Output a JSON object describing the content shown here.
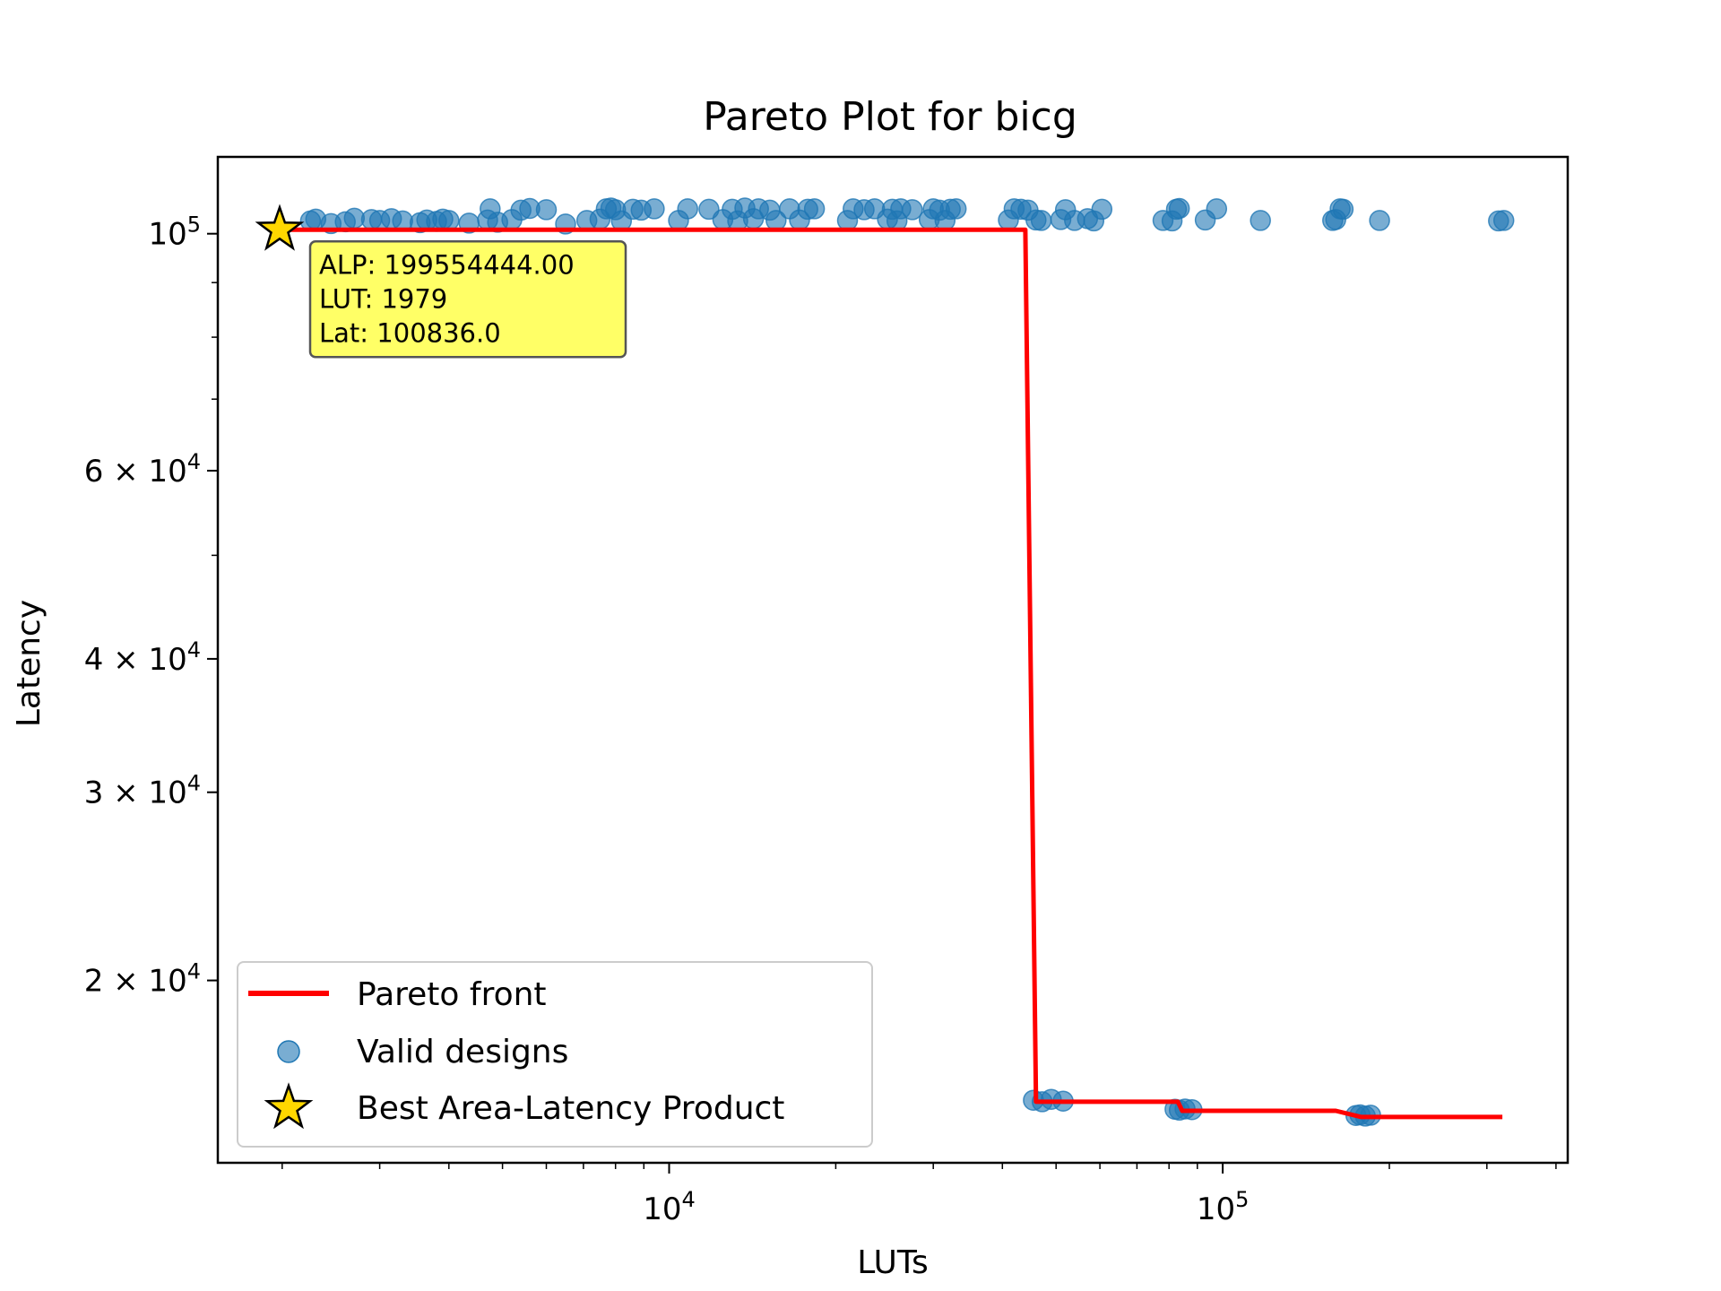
{
  "chart_data": {
    "type": "scatter",
    "title": "Pareto Plot for bicg",
    "xlabel": "LUTs",
    "ylabel": "Latency",
    "xscale": "log",
    "yscale": "log",
    "xlim": [
      1530,
      420000
    ],
    "ylim": [
      13500,
      118000
    ],
    "grid": false,
    "legend_position": "lower-left",
    "x_ticks": [
      {
        "value": 10000,
        "base": "10",
        "exp": "4"
      },
      {
        "value": 100000,
        "base": "10",
        "exp": "5"
      }
    ],
    "y_ticks": [
      {
        "value": 100000,
        "base": "10",
        "exp": "5"
      },
      {
        "value": 60000,
        "base": "6 × 10",
        "exp": "4"
      },
      {
        "value": 40000,
        "base": "4 × 10",
        "exp": "4"
      },
      {
        "value": 30000,
        "base": "3 × 10",
        "exp": "4"
      },
      {
        "value": 20000,
        "base": "2 × 10",
        "exp": "4"
      }
    ],
    "series": [
      {
        "name": "Pareto front",
        "kind": "line",
        "color": "#ff0000",
        "x": [
          1979,
          44000,
          46000,
          83000,
          84500,
          160000,
          178000,
          320000
        ],
        "y": [
          100836,
          100836,
          15400,
          15400,
          15100,
          15100,
          14900,
          14900
        ]
      },
      {
        "name": "Valid designs",
        "kind": "scatter",
        "color": "#1f77b4",
        "points": [
          [
            2250,
            102800
          ],
          [
            2300,
            103200
          ],
          [
            2450,
            102200
          ],
          [
            2600,
            102600
          ],
          [
            2700,
            103400
          ],
          [
            2900,
            103100
          ],
          [
            3000,
            102900
          ],
          [
            3150,
            103300
          ],
          [
            3300,
            102800
          ],
          [
            3550,
            102400
          ],
          [
            3650,
            103000
          ],
          [
            3800,
            102700
          ],
          [
            3900,
            103200
          ],
          [
            4000,
            102900
          ],
          [
            4350,
            102300
          ],
          [
            4700,
            103000
          ],
          [
            4750,
            105500
          ],
          [
            4900,
            102500
          ],
          [
            5200,
            103100
          ],
          [
            5400,
            105200
          ],
          [
            5600,
            105600
          ],
          [
            6000,
            105300
          ],
          [
            6500,
            102100
          ],
          [
            7100,
            102900
          ],
          [
            7500,
            103200
          ],
          [
            7700,
            105500
          ],
          [
            7850,
            105700
          ],
          [
            8000,
            105300
          ],
          [
            8200,
            102800
          ],
          [
            8600,
            105400
          ],
          [
            8900,
            105200
          ],
          [
            9400,
            105500
          ],
          [
            10400,
            102900
          ],
          [
            10800,
            105500
          ],
          [
            11800,
            105400
          ],
          [
            12500,
            103100
          ],
          [
            13000,
            105400
          ],
          [
            13300,
            102800
          ],
          [
            13700,
            105700
          ],
          [
            14200,
            103300
          ],
          [
            14500,
            105500
          ],
          [
            15200,
            105200
          ],
          [
            15600,
            102900
          ],
          [
            16500,
            105500
          ],
          [
            17200,
            103000
          ],
          [
            17800,
            105400
          ],
          [
            18300,
            105500
          ],
          [
            21000,
            102900
          ],
          [
            21500,
            105500
          ],
          [
            22500,
            105300
          ],
          [
            23500,
            105500
          ],
          [
            24800,
            103200
          ],
          [
            25300,
            105400
          ],
          [
            25800,
            102800
          ],
          [
            26200,
            105500
          ],
          [
            27500,
            105300
          ],
          [
            29500,
            103100
          ],
          [
            30000,
            105500
          ],
          [
            30800,
            105200
          ],
          [
            31500,
            102900
          ],
          [
            32200,
            105400
          ],
          [
            33000,
            105500
          ],
          [
            41000,
            103000
          ],
          [
            42000,
            105500
          ],
          [
            43200,
            105400
          ],
          [
            44500,
            105200
          ],
          [
            46000,
            103000
          ],
          [
            47000,
            102900
          ],
          [
            51000,
            103100
          ],
          [
            52000,
            105300
          ],
          [
            54000,
            102900
          ],
          [
            57000,
            103300
          ],
          [
            58500,
            102800
          ],
          [
            60500,
            105400
          ],
          [
            78000,
            102900
          ],
          [
            81000,
            102800
          ],
          [
            82500,
            105400
          ],
          [
            83500,
            105600
          ],
          [
            93000,
            103000
          ],
          [
            97500,
            105500
          ],
          [
            117000,
            102900
          ],
          [
            158000,
            102900
          ],
          [
            160000,
            103100
          ],
          [
            163000,
            105500
          ],
          [
            165000,
            105400
          ],
          [
            192000,
            102900
          ],
          [
            315000,
            102800
          ],
          [
            322000,
            102900
          ],
          [
            45500,
            15450
          ],
          [
            47200,
            15400
          ],
          [
            49000,
            15480
          ],
          [
            51500,
            15420
          ],
          [
            82000,
            15150
          ],
          [
            83500,
            15120
          ],
          [
            85500,
            15160
          ],
          [
            88000,
            15140
          ],
          [
            174000,
            14950
          ],
          [
            177000,
            14970
          ],
          [
            181000,
            14930
          ],
          [
            185000,
            14960
          ]
        ]
      },
      {
        "name": "Best Area-Latency Product",
        "kind": "marker",
        "marker": "star",
        "color": "#ffd700",
        "x": [
          1979
        ],
        "y": [
          100836
        ]
      }
    ],
    "annotations": [
      {
        "target": {
          "x": 1979,
          "y": 100836
        },
        "lines": [
          "ALP: 199554444.00",
          "LUT: 1979",
          "Lat: 100836.0"
        ],
        "background": "#ffff66"
      }
    ]
  }
}
